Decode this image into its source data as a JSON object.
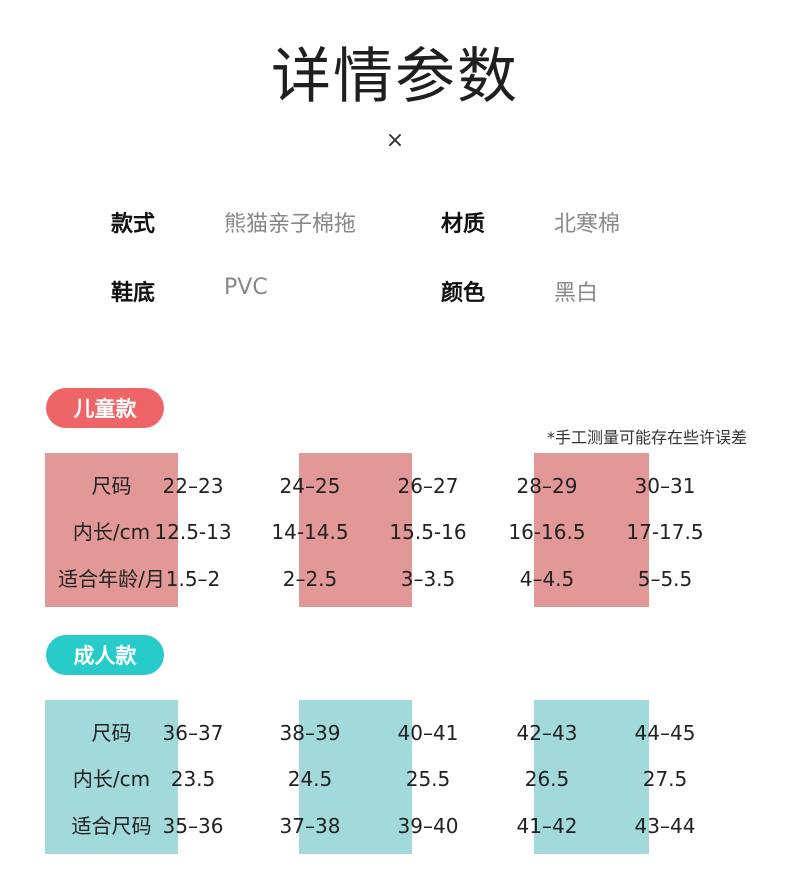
{
  "page": {
    "title": "详情参数",
    "close_glyph": "×"
  },
  "specs": {
    "style_label": "款式",
    "style_value": "熊猫亲子棉拖",
    "material_label": "材质",
    "material_value": "北寒棉",
    "sole_label": "鞋底",
    "sole_value": "PVC",
    "color_label": "颜色",
    "color_value": "黑白"
  },
  "kids": {
    "badge": "儿童款",
    "note": "*手工测量可能存在些许误差",
    "accent": "#e39898",
    "badge_color": "#ee6467",
    "row_labels": [
      "尺码",
      "内长/cm",
      "适合年龄/月"
    ],
    "sizes": [
      "22–23",
      "24–25",
      "26–27",
      "28–29",
      "30–31"
    ],
    "inner_length": [
      "12.5-13",
      "14-14.5",
      "15.5-16",
      "16-16.5",
      "17-17.5"
    ],
    "age_months": [
      "1.5–2",
      "2–2.5",
      "3–3.5",
      "4–4.5",
      "5–5.5"
    ]
  },
  "adult": {
    "badge": "成人款",
    "accent": "#a2d9da",
    "badge_color": "#27ccca",
    "row_labels": [
      "尺码",
      "内长/cm",
      "适合尺码"
    ],
    "sizes": [
      "36–37",
      "38–39",
      "40–41",
      "42–43",
      "44–45"
    ],
    "inner_length": [
      "23.5",
      "24.5",
      "25.5",
      "26.5",
      "27.5"
    ],
    "fit_size": [
      "35–36",
      "37–38",
      "39–40",
      "41–42",
      "43–44"
    ]
  }
}
